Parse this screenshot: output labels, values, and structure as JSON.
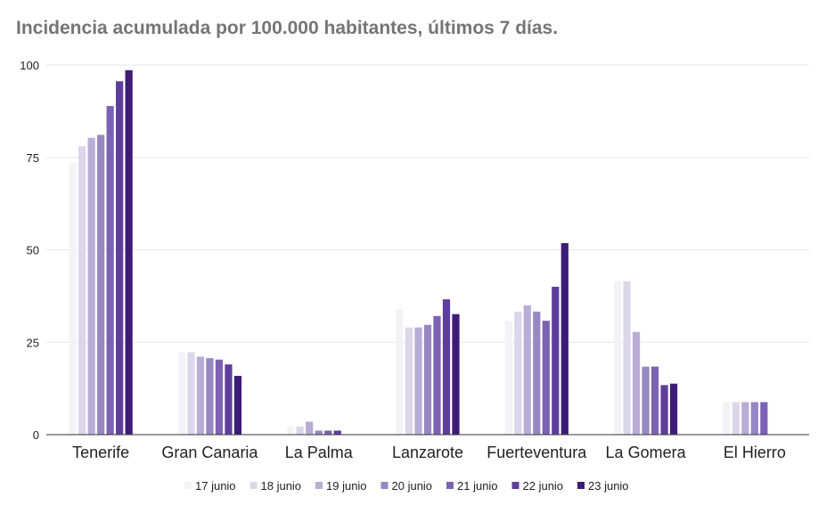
{
  "chart_data": {
    "type": "bar",
    "title": "Incidencia acumulada por 100.000 habitantes, últimos 7 días.",
    "xlabel": "",
    "ylabel": "",
    "ylim": [
      0,
      100
    ],
    "yticks": [
      "0",
      "25",
      "50",
      "75",
      "100"
    ],
    "grid": true,
    "legend_position": "bottom",
    "categories": [
      "Tenerife",
      "Gran Canaria",
      "La Palma",
      "Lanzarote",
      "Fuerteventura",
      "La Gomera",
      "El Hierro"
    ],
    "series": [
      {
        "name": "17 junio",
        "color": "#f3f2f6",
        "values": [
          73.5,
          22.3,
          2.2,
          34.0,
          30.8,
          41.5,
          8.8
        ]
      },
      {
        "name": "18 junio",
        "color": "#dcd6ea",
        "values": [
          78.0,
          22.3,
          2.2,
          29.0,
          33.3,
          41.5,
          8.8
        ]
      },
      {
        "name": "19 junio",
        "color": "#b9acd6",
        "values": [
          80.3,
          21.1,
          3.5,
          29.0,
          35.0,
          27.8,
          8.8
        ]
      },
      {
        "name": "20 junio",
        "color": "#9787c3",
        "values": [
          81.1,
          20.7,
          1.1,
          29.7,
          33.3,
          18.4,
          8.8
        ]
      },
      {
        "name": "21 junio",
        "color": "#7c62b2",
        "values": [
          88.9,
          20.3,
          1.1,
          32.1,
          30.8,
          18.4,
          8.8
        ]
      },
      {
        "name": "22 junio",
        "color": "#5e3d9c",
        "values": [
          95.6,
          19.0,
          1.1,
          36.6,
          40.0,
          13.4,
          0
        ]
      },
      {
        "name": "23 junio",
        "color": "#3c1c78",
        "values": [
          98.6,
          15.9,
          0,
          32.6,
          51.8,
          13.8,
          0
        ]
      }
    ]
  }
}
